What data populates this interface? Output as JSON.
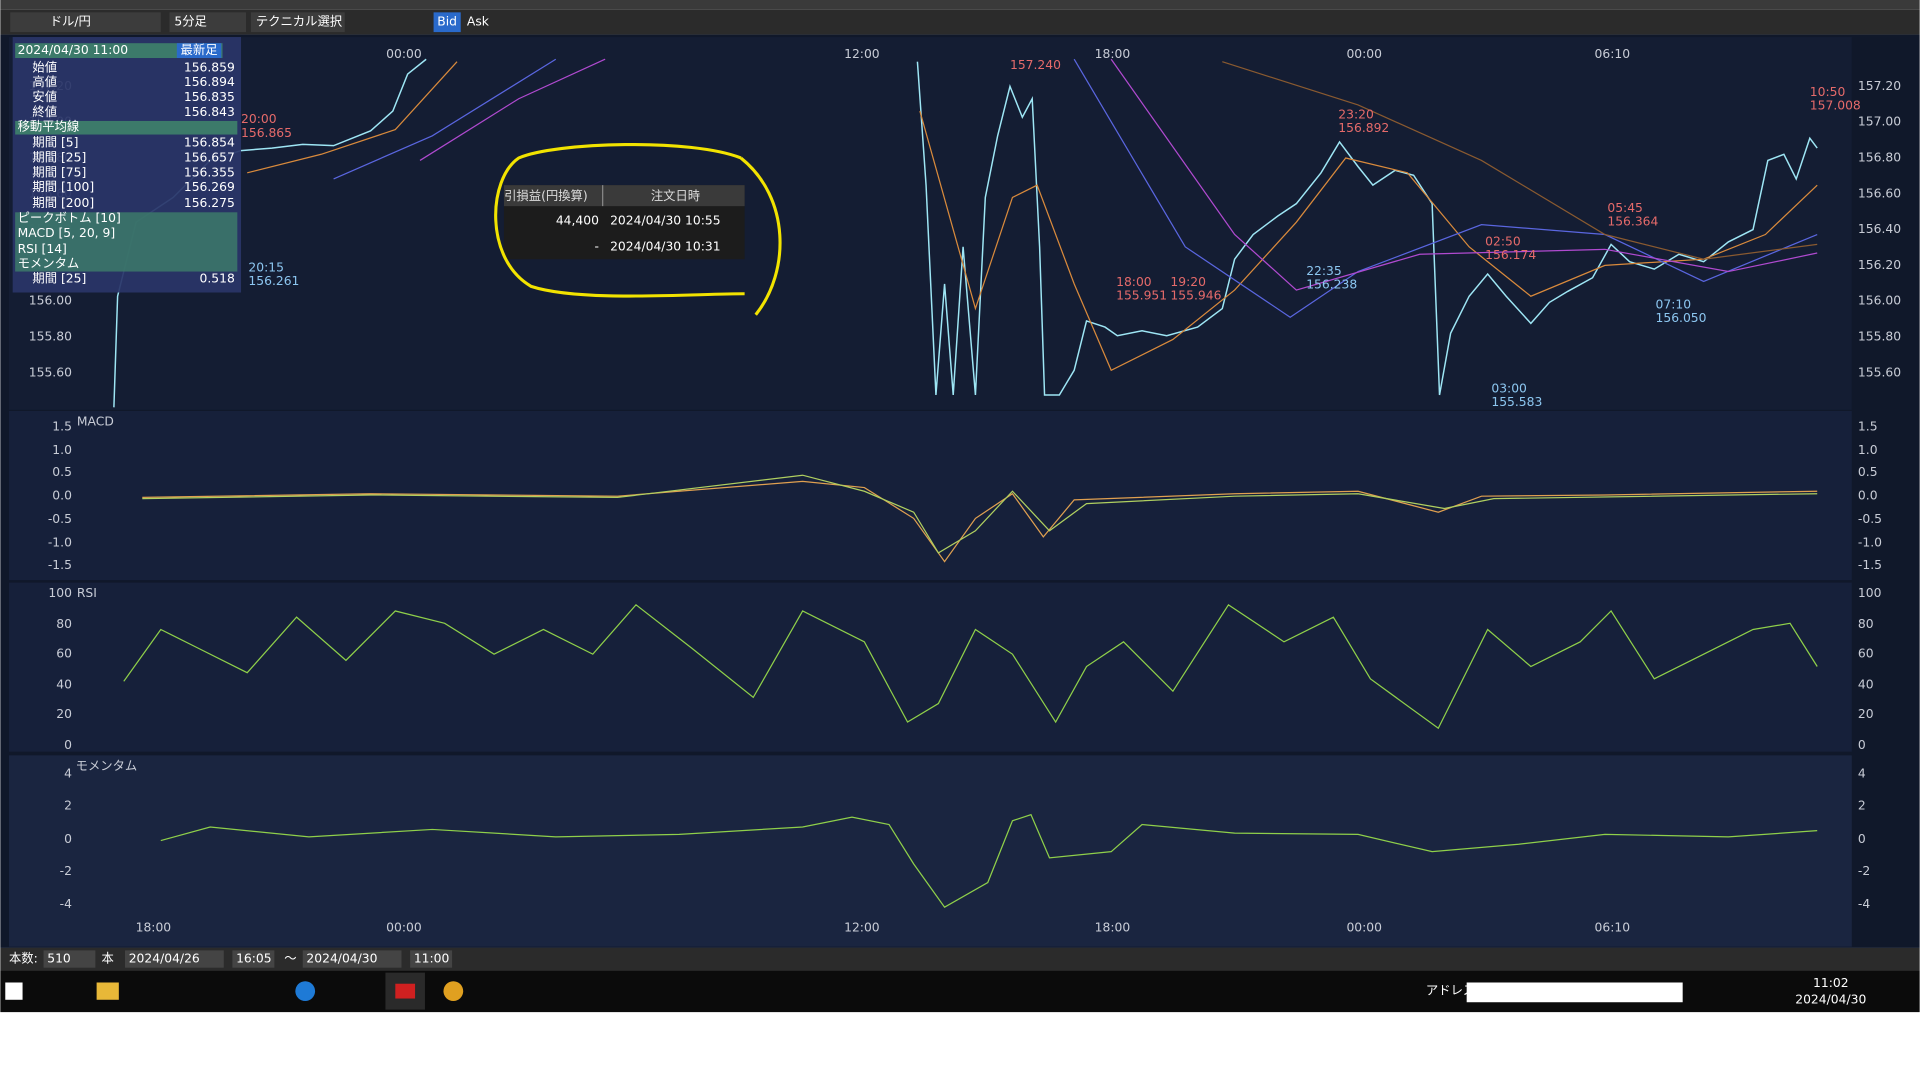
{
  "toolbar": {
    "pair": "ドル/円",
    "timeframe": "5分足",
    "technical": "テクニカル選択",
    "bid": "Bid",
    "ask": "Ask"
  },
  "info_panel": {
    "datetime": "2024/04/30 11:00",
    "latest": "最新足",
    "ohlc": [
      {
        "label": "始値",
        "value": "156.859"
      },
      {
        "label": "高値",
        "value": "156.894"
      },
      {
        "label": "安値",
        "value": "156.835"
      },
      {
        "label": "終値",
        "value": "156.843"
      }
    ],
    "ma_title": "移動平均線",
    "ma": [
      {
        "label": "期間 [5]",
        "value": "156.854"
      },
      {
        "label": "期間 [25]",
        "value": "156.657"
      },
      {
        "label": "期間 [75]",
        "value": "156.355"
      },
      {
        "label": "期間 [100]",
        "value": "156.269"
      },
      {
        "label": "期間 [200]",
        "value": "156.275"
      }
    ],
    "indicators": [
      "ピークボトム [10]",
      "MACD [5, 20, 9]",
      "RSI [14]",
      "モメンタム"
    ],
    "momentum": {
      "label": "期間 [25]",
      "value": "0.518"
    }
  },
  "price_panel": {
    "yticks": [
      "157.20",
      "157.00",
      "156.80",
      "156.60",
      "156.40",
      "156.20",
      "156.00",
      "155.80",
      "155.60"
    ],
    "top_times": [
      "00:00",
      "12:00",
      "18:00",
      "00:00",
      "06:10"
    ],
    "annotations": [
      {
        "time": "20:00",
        "price": "156.865"
      },
      {
        "time": "20:15",
        "price": "156.261"
      },
      {
        "price": "157.240"
      },
      {
        "time": "18:00",
        "price": "155.951"
      },
      {
        "time": "19:20",
        "price": "155.946"
      },
      {
        "time": "23:20",
        "price": "156.892"
      },
      {
        "time": "22:35",
        "price": "156.238"
      },
      {
        "time": "02:50",
        "price": "156.174"
      },
      {
        "time": "05:45",
        "price": "156.364"
      },
      {
        "time": "07:10",
        "price": "156.050"
      },
      {
        "time": "03:00",
        "price": "155.583"
      },
      {
        "time": "10:50",
        "price": "157.008"
      }
    ]
  },
  "macd_panel": {
    "label": "MACD",
    "yticks": [
      "1.5",
      "1.0",
      "0.5",
      "0.0",
      "-0.5",
      "-1.0",
      "-1.5"
    ]
  },
  "rsi_panel": {
    "label": "RSI",
    "yticks": [
      "100",
      "80",
      "60",
      "40",
      "20",
      "0"
    ]
  },
  "momentum_panel": {
    "label": "モメンタム",
    "yticks": [
      "4",
      "2",
      "0",
      "-2",
      "-4"
    ]
  },
  "x_axis": [
    "18:00",
    "00:00",
    "12:00",
    "18:00",
    "00:00",
    "06:10"
  ],
  "order_table": {
    "headers": [
      "引損益(円換算)",
      "注文日時"
    ],
    "rows": [
      [
        "44,400",
        "2024/04/30 10:55"
      ],
      [
        "-",
        "2024/04/30 10:31"
      ]
    ]
  },
  "footer": {
    "count_label": "本数:",
    "count": "510",
    "unit": "本",
    "from_date": "2024/04/26",
    "from_time": "16:05",
    "separator": "～",
    "to_date": "2024/04/30",
    "to_time": "11:00"
  },
  "taskbar": {
    "address_label": "アドレス",
    "time": "11:02",
    "date": "2024/04/30"
  }
}
